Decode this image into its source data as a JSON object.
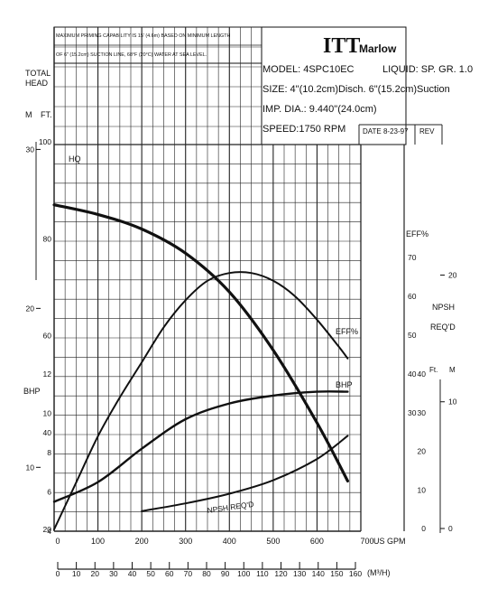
{
  "header": {
    "note_line1": "MAXIMUM PRIMING CAPABILITY IS 15' (4.6m) BASED ON MINIMUM LENGTH",
    "note_line2": "OF 6\" (15.2cm) SUCTION LINE, 68°F (20°C) WATER AT SEA LEVEL.",
    "brand": "ITT",
    "brand_name": "Marlow",
    "model": "MODEL: 4SPC10EC",
    "liquid": "LIQUID: SP. GR. 1.0",
    "size": "SIZE: 4\"(10.2cm)Disch. 6\"(15.2cm)Suction",
    "imp_dia": "IMP. DIA.: 9.440\"(24.0cm)",
    "speed": "SPEED:1750 RPM",
    "date": "DATE 8-23-97",
    "rev": "REV"
  },
  "labels": {
    "total_head": "TOTAL",
    "total_head2": "HEAD",
    "head_m": "M",
    "head_ft": "FT.",
    "bhp": "BHP",
    "eff_axis": "EFF%",
    "npsh": "NPSH",
    "npsh2": "REQ'D",
    "npsh_ft": "Ft.",
    "npsh_m": "M",
    "flow_gpm_unit": "US GPM",
    "flow_m3h_unit": "(M³/H)"
  },
  "chart_data": {
    "type": "line",
    "x_unit": "US GPM",
    "xlim": [
      0,
      700
    ],
    "x_ticks": [
      0,
      100,
      200,
      300,
      400,
      500,
      600,
      700
    ],
    "x2_unit": "M³/H",
    "x2_ticks": [
      0,
      10,
      20,
      30,
      40,
      50,
      60,
      70,
      80,
      90,
      100,
      110,
      120,
      130,
      140,
      150,
      160
    ],
    "head_ft_ticks": [
      20,
      40,
      60,
      80,
      100
    ],
    "head_m_ticks": [
      10,
      20,
      30
    ],
    "bhp_ticks": [
      4,
      6,
      8,
      10,
      12
    ],
    "eff_ticks": [
      30,
      40,
      50,
      60,
      70
    ],
    "npsh_ft_ticks": [
      0,
      10,
      20,
      30,
      40
    ],
    "npsh_m_ticks": [
      0,
      10,
      20
    ],
    "series": [
      {
        "name": "HQ",
        "x": [
          0,
          100,
          200,
          300,
          400,
          500,
          600,
          670
        ],
        "y": [
          87,
          85,
          82,
          77,
          69,
          57,
          42,
          30
        ]
      },
      {
        "name": "EFF%",
        "x": [
          0,
          50,
          100,
          150,
          200,
          250,
          300,
          350,
          400,
          450,
          500,
          550,
          600,
          650,
          670
        ],
        "y": [
          0,
          12,
          24,
          34,
          43,
          52,
          59,
          64,
          66,
          66,
          64,
          60,
          54,
          47,
          44
        ]
      },
      {
        "name": "BHP",
        "x": [
          0,
          100,
          200,
          300,
          400,
          500,
          600,
          670
        ],
        "y": [
          5.5,
          6.5,
          8.2,
          9.7,
          10.5,
          10.9,
          11.1,
          11.1
        ]
      },
      {
        "name": "NPSH REQ'D",
        "x": [
          200,
          300,
          400,
          500,
          600,
          670
        ],
        "y": [
          4.5,
          6.5,
          9,
          12.5,
          18,
          24
        ]
      }
    ]
  }
}
